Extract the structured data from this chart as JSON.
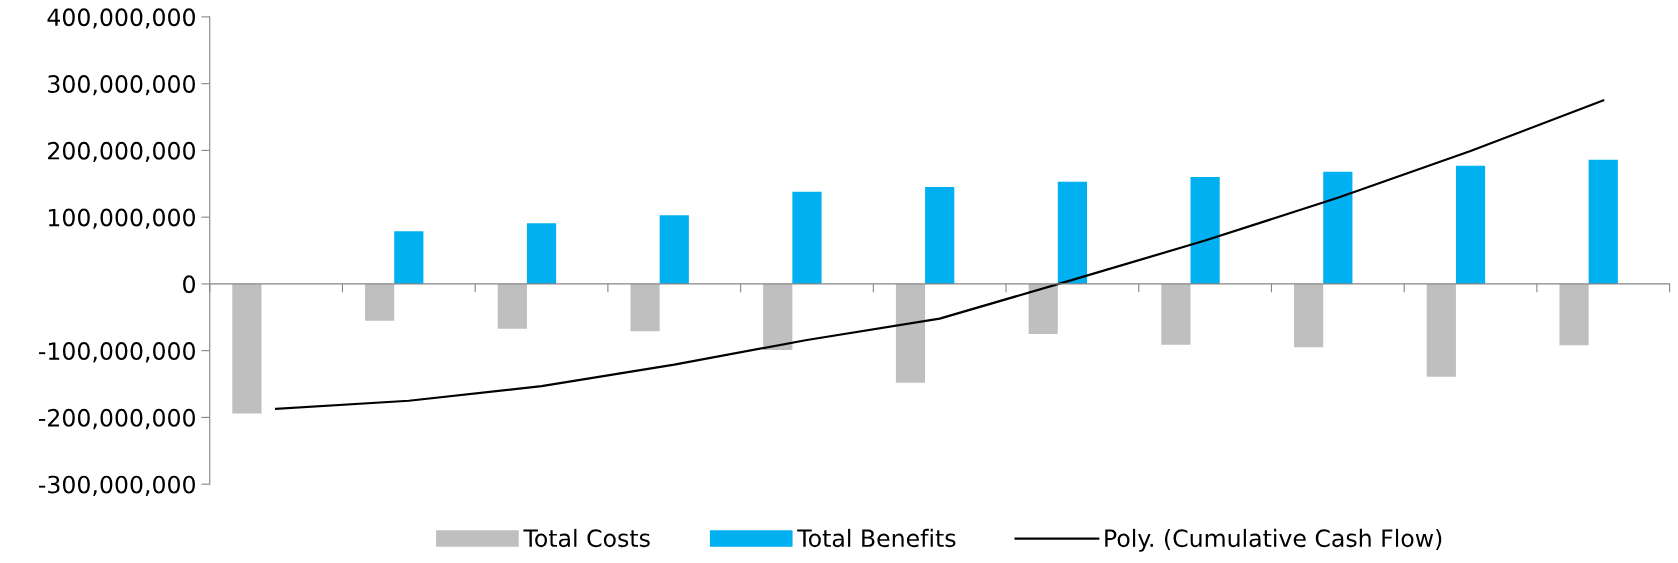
{
  "chart_data": {
    "type": "bar",
    "categories": [
      null,
      null,
      null,
      null,
      null,
      null,
      null,
      null,
      null,
      null,
      null
    ],
    "series": [
      {
        "name": "Total Costs",
        "color": "#bfbfbf",
        "values": [
          -194000000,
          -55000000,
          -67000000,
          -71000000,
          -99000000,
          -148000000,
          -75000000,
          -91000000,
          -95000000,
          -139000000,
          -92000000
        ]
      },
      {
        "name": "Total Benefits",
        "color": "#00b0f0",
        "values": [
          null,
          79000000,
          91000000,
          103000000,
          138000000,
          145000000,
          153000000,
          160000000,
          168000000,
          177000000,
          186000000
        ]
      },
      {
        "name": "Poly. (Cumulative Cash Flow)",
        "type": "line",
        "color": "#000000",
        "values": [
          -187000000,
          -175000000,
          -153000000,
          -121000000,
          -84000000,
          -52000000,
          6000000,
          65000000,
          129000000,
          199000000,
          275000000
        ]
      }
    ],
    "ylim": [
      -300000000,
      400000000
    ],
    "yticks": [
      {
        "value": -300000000,
        "label": "-300,000,000"
      },
      {
        "value": -200000000,
        "label": "-200,000,000"
      },
      {
        "value": -100000000,
        "label": "-100,000,000"
      },
      {
        "value": 0,
        "label": "0"
      },
      {
        "value": 100000000,
        "label": "100,000,000"
      },
      {
        "value": 200000000,
        "label": "200,000,000"
      },
      {
        "value": 300000000,
        "label": "300,000,000"
      },
      {
        "value": 400000000,
        "label": "400,000,000"
      }
    ],
    "tick_labels": "y",
    "legend": "bottom",
    "marker": "none",
    "line_style": "solid"
  }
}
